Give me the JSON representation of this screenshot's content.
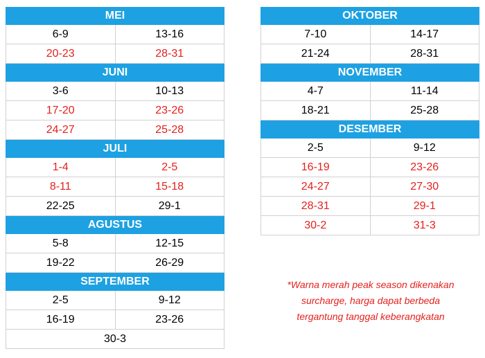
{
  "header_color": "#1da1e2",
  "columns": [
    [
      {
        "month": "MEI",
        "rows": [
          {
            "dates": [
              "6-9",
              "13-16"
            ],
            "color": "#000000"
          },
          {
            "dates": [
              "20-23",
              "28-31"
            ],
            "color": "#e3211c"
          }
        ]
      },
      {
        "month": "JUNI",
        "rows": [
          {
            "dates": [
              "3-6",
              "10-13"
            ],
            "color": "#000000"
          },
          {
            "dates": [
              "17-20",
              "23-26"
            ],
            "color": "#e3211c"
          },
          {
            "dates": [
              "24-27",
              "25-28"
            ],
            "color": "#e3211c"
          }
        ]
      },
      {
        "month": "JULI",
        "rows": [
          {
            "dates": [
              "1-4",
              "2-5"
            ],
            "color": "#e3211c"
          },
          {
            "dates": [
              "8-11",
              "15-18"
            ],
            "color": "#e3211c"
          },
          {
            "dates": [
              "22-25",
              "29-1"
            ],
            "color": "#000000"
          }
        ]
      },
      {
        "month": "AGUSTUS",
        "rows": [
          {
            "dates": [
              "5-8",
              "12-15"
            ],
            "color": "#000000"
          },
          {
            "dates": [
              "19-22",
              "26-29"
            ],
            "color": "#000000"
          }
        ]
      },
      {
        "month": "SEPTEMBER",
        "rows": [
          {
            "dates": [
              "2-5",
              "9-12"
            ],
            "color": "#000000"
          },
          {
            "dates": [
              "16-19",
              "23-26"
            ],
            "color": "#000000"
          },
          {
            "dates": [
              "30-3"
            ],
            "color": "#000000"
          }
        ]
      }
    ],
    [
      {
        "month": "OKTOBER",
        "rows": [
          {
            "dates": [
              "7-10",
              "14-17"
            ],
            "color": "#000000"
          },
          {
            "dates": [
              "21-24",
              "28-31"
            ],
            "color": "#000000"
          }
        ]
      },
      {
        "month": "NOVEMBER",
        "rows": [
          {
            "dates": [
              "4-7",
              "11-14"
            ],
            "color": "#000000"
          },
          {
            "dates": [
              "18-21",
              "25-28"
            ],
            "color": "#000000"
          }
        ]
      },
      {
        "month": "DESEMBER",
        "rows": [
          {
            "dates": [
              "2-5",
              "9-12"
            ],
            "color": "#000000"
          },
          {
            "dates": [
              "16-19",
              "23-26"
            ],
            "color": "#e3211c"
          },
          {
            "dates": [
              "24-27",
              "27-30"
            ],
            "color": "#e3211c"
          },
          {
            "dates": [
              "28-31",
              "29-1"
            ],
            "color": "#e3211c"
          },
          {
            "dates": [
              "30-2",
              "31-3"
            ],
            "color": "#e3211c"
          }
        ]
      }
    ]
  ],
  "note": {
    "color": "#e3211c",
    "lines": [
      "*Warna merah peak season dikenakan",
      "surcharge, harga dapat berbeda",
      "tergantung tanggal keberangkatan"
    ]
  }
}
